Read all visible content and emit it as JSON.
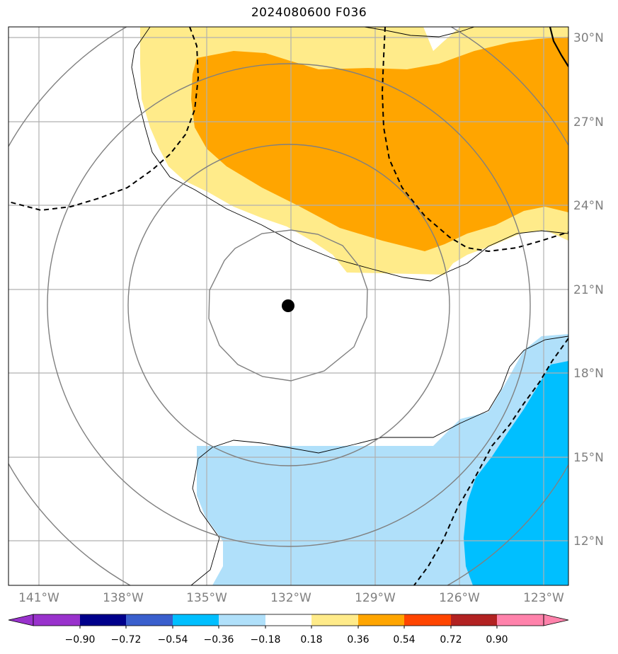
{
  "title": "2024080600 F036",
  "map": {
    "lon_ticks": [
      "141°W",
      "138°W",
      "135°W",
      "132°W",
      "129°W",
      "126°W",
      "123°W"
    ],
    "lat_ticks": [
      "30°N",
      "27°N",
      "24°N",
      "21°N",
      "18°N",
      "15°N",
      "12°N"
    ],
    "storm_center": {
      "lon": -132.1,
      "lat": 20.4
    },
    "range_rings_count": 4,
    "colors": {
      "light_yellow": "#ffeb8a",
      "orange": "#ffa500",
      "light_blue": "#b0e0fa",
      "deep_sky_blue": "#00bfff",
      "ring": "#808080",
      "grid": "#b0b0b0"
    }
  },
  "colorbar": {
    "tick_labels": [
      "−0.90",
      "−0.72",
      "−0.54",
      "−0.36",
      "−0.18",
      "0.18",
      "0.36",
      "0.54",
      "0.72",
      "0.90"
    ],
    "colors": [
      "#9932cc",
      "#00008b",
      "#3a5fcd",
      "#00bfff",
      "#b0e0fa",
      "#ffffff",
      "#ffeb8a",
      "#ffa500",
      "#ff4500",
      "#b22222",
      "#ff82ab"
    ]
  }
}
